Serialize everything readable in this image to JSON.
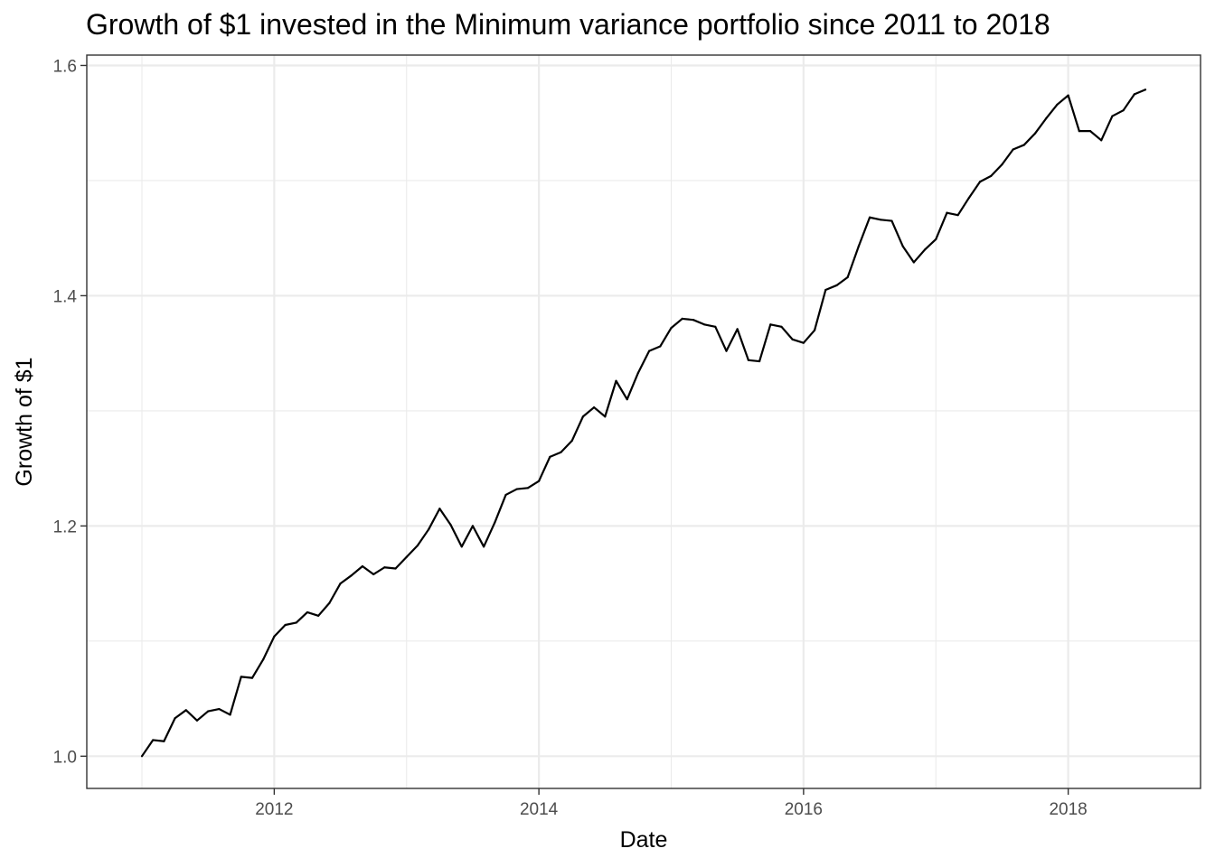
{
  "chart_data": {
    "type": "line",
    "title": "Growth of $1 invested in the Minimum variance portfolio since 2011 to 2018",
    "xlabel": "Date",
    "ylabel": "Growth of $1",
    "x_ticks": [
      {
        "label": "2012",
        "value": 2012
      },
      {
        "label": "2014",
        "value": 2014
      },
      {
        "label": "2016",
        "value": 2016
      },
      {
        "label": "2018",
        "value": 2018
      }
    ],
    "y_ticks": [
      {
        "label": "1.0",
        "value": 1.0
      },
      {
        "label": "1.2",
        "value": 1.2
      },
      {
        "label": "1.4",
        "value": 1.4
      },
      {
        "label": "1.6",
        "value": 1.6
      }
    ],
    "xlim": [
      "2010-08",
      "2019-01"
    ],
    "ylim": [
      0.972,
      1.609
    ],
    "grid": true,
    "colors": {
      "line": "#000000",
      "grid": "#ebebeb",
      "border": "#333333"
    },
    "series": [
      {
        "x": [
          "2011-01",
          "2011-02",
          "2011-03",
          "2011-04",
          "2011-05",
          "2011-06",
          "2011-07",
          "2011-08",
          "2011-09",
          "2011-10",
          "2011-11",
          "2011-12",
          "2012-01",
          "2012-02",
          "2012-03",
          "2012-04",
          "2012-05",
          "2012-06",
          "2012-07",
          "2012-08",
          "2012-09",
          "2012-10",
          "2012-11",
          "2012-12",
          "2013-01",
          "2013-02",
          "2013-03",
          "2013-04",
          "2013-05",
          "2013-06",
          "2013-07",
          "2013-08",
          "2013-09",
          "2013-10",
          "2013-11",
          "2013-12",
          "2014-01",
          "2014-02",
          "2014-03",
          "2014-04",
          "2014-05",
          "2014-06",
          "2014-07",
          "2014-08",
          "2014-09",
          "2014-10",
          "2014-11",
          "2014-12",
          "2015-01",
          "2015-02",
          "2015-03",
          "2015-04",
          "2015-05",
          "2015-06",
          "2015-07",
          "2015-08",
          "2015-09",
          "2015-10",
          "2015-11",
          "2015-12",
          "2016-01",
          "2016-02",
          "2016-03",
          "2016-04",
          "2016-05",
          "2016-06",
          "2016-07",
          "2016-08",
          "2016-09",
          "2016-10",
          "2016-11",
          "2016-12",
          "2017-01",
          "2017-02",
          "2017-03",
          "2017-04",
          "2017-05",
          "2017-06",
          "2017-07",
          "2017-08",
          "2017-09",
          "2017-10",
          "2017-11",
          "2017-12",
          "2018-01",
          "2018-02",
          "2018-03",
          "2018-04",
          "2018-05",
          "2018-06",
          "2018-07",
          "2018-08"
        ],
        "values": [
          1.0,
          1.014,
          1.013,
          1.033,
          1.04,
          1.031,
          1.039,
          1.041,
          1.036,
          1.069,
          1.068,
          1.084,
          1.104,
          1.114,
          1.116,
          1.125,
          1.122,
          1.133,
          1.15,
          1.157,
          1.165,
          1.158,
          1.164,
          1.163,
          1.173,
          1.183,
          1.197,
          1.215,
          1.201,
          1.182,
          1.2,
          1.182,
          1.203,
          1.227,
          1.232,
          1.233,
          1.239,
          1.26,
          1.264,
          1.274,
          1.295,
          1.303,
          1.295,
          1.326,
          1.31,
          1.333,
          1.352,
          1.356,
          1.372,
          1.38,
          1.379,
          1.375,
          1.373,
          1.352,
          1.371,
          1.344,
          1.343,
          1.375,
          1.373,
          1.362,
          1.359,
          1.37,
          1.405,
          1.409,
          1.416,
          1.443,
          1.468,
          1.466,
          1.465,
          1.443,
          1.429,
          1.44,
          1.449,
          1.472,
          1.47,
          1.485,
          1.499,
          1.504,
          1.514,
          1.527,
          1.531,
          1.541,
          1.554,
          1.566,
          1.574,
          1.543,
          1.543,
          1.535,
          1.556,
          1.561,
          1.575,
          1.579
        ]
      }
    ]
  }
}
